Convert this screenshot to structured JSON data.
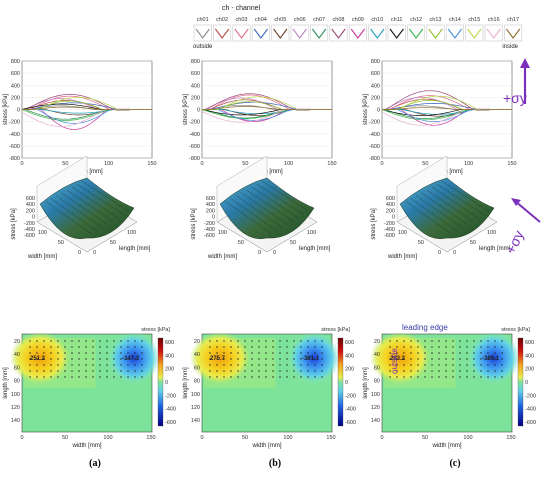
{
  "legend": {
    "title": "ch - channel",
    "channels": [
      "ch01",
      "ch02",
      "ch03",
      "ch04",
      "ch05",
      "ch06",
      "ch07",
      "ch08",
      "ch09",
      "ch10",
      "ch11",
      "ch12",
      "ch13",
      "ch14",
      "ch15",
      "ch16",
      "ch17"
    ],
    "colors": [
      "#888888",
      "#b54a4a",
      "#e36c8a",
      "#3a67b8",
      "#6b3f2a",
      "#c084c8",
      "#2e8b57",
      "#9c4a7a",
      "#cc3399",
      "#1f9fbf",
      "#111111",
      "#3ab54a",
      "#8fbf2a",
      "#4a90e2",
      "#b8d84a",
      "#e8b0d0",
      "#8a6a2a"
    ],
    "outside_label": "outside",
    "inside_label": "inside"
  },
  "annotations": {
    "sigma_top": "+σy",
    "sigma_mid": "+σy",
    "leading_edge": "leading edge",
    "outside_vertical": "outside"
  },
  "panel_labels": [
    "(a)",
    "(b)",
    "(c)"
  ],
  "chart_data": [
    {
      "type": "line",
      "xlabel": "length [mm]",
      "ylabel": "stress [kPa]",
      "xlim": [
        0,
        150
      ],
      "ylim": [
        -800,
        800
      ],
      "xticks": [
        "0",
        "50",
        "100",
        "150"
      ],
      "yticks": [
        "800",
        "600",
        "400",
        "200",
        "0",
        "-200",
        "-400",
        "-600",
        "-800"
      ],
      "series_amplitudes_kPa": [
        {
          "panel": "a",
          "amps": [
            60,
            150,
            220,
            110,
            -90,
            180,
            -160,
            250,
            -330,
            -60,
            90,
            -180,
            140,
            -230,
            200,
            -280,
            40
          ]
        },
        {
          "panel": "b",
          "amps": [
            70,
            160,
            240,
            120,
            -100,
            190,
            -140,
            260,
            -200,
            -70,
            -90,
            -150,
            130,
            -180,
            210,
            -210,
            50
          ]
        },
        {
          "panel": "c",
          "amps": [
            60,
            170,
            230,
            100,
            -110,
            200,
            -150,
            310,
            -260,
            -80,
            -100,
            -170,
            150,
            -200,
            220,
            -260,
            30
          ]
        }
      ]
    },
    {
      "type": "surface",
      "xlabel": "length [mm]",
      "ylabel": "width [mm]",
      "zlabel": "stress [kPa]",
      "zticks": [
        "600",
        "400",
        "200",
        "0",
        "-200",
        "-400",
        "-600"
      ],
      "length_ticks": [
        "0",
        "50",
        "100"
      ],
      "width_ticks": [
        "0",
        "50",
        "100"
      ]
    },
    {
      "type": "heatmap",
      "xlabel": "width [mm]",
      "ylabel": "length [mm]",
      "xticks": [
        "0",
        "50",
        "100",
        "150"
      ],
      "yticks": [
        "20",
        "40",
        "60",
        "80",
        "100",
        "120",
        "140"
      ],
      "colorbar_title": "stress [kPa]",
      "colorbar_ticks": [
        "600",
        "400",
        "200",
        "0",
        "-200",
        "-400",
        "-600"
      ],
      "peaks": [
        {
          "panel": "a",
          "max": "251.2",
          "min": "-347.3"
        },
        {
          "panel": "b",
          "max": "275.7",
          "min": "-391.1"
        },
        {
          "panel": "c",
          "max": "283.2",
          "min": "-389.1"
        }
      ]
    }
  ]
}
